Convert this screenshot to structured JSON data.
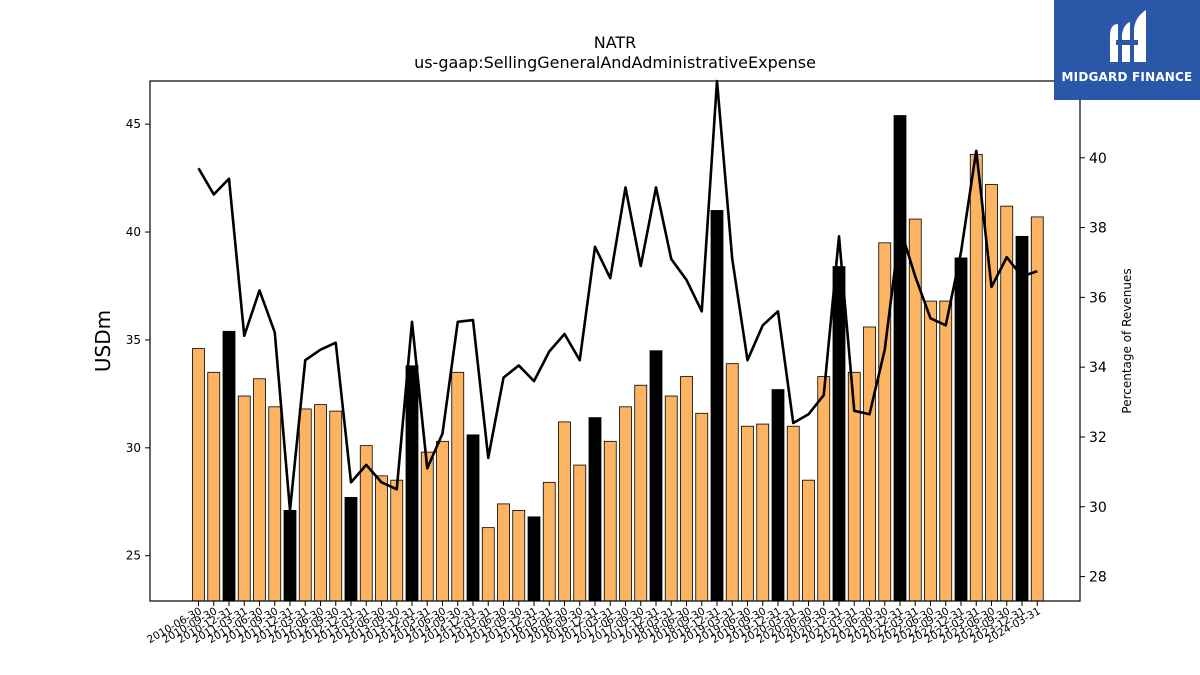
{
  "brand": {
    "name": "MIDGARD FINANCE",
    "bg_color": "#2a57a8"
  },
  "chart_data": {
    "type": "bar",
    "title": "NATR",
    "subtitle": "us-gaap:SellingGeneralAndAdministrativeExpense",
    "ylabel": "USDm",
    "y2label": "Percentage of Revenues",
    "ylim": [
      22.9,
      47.0
    ],
    "y2lim": [
      27.3,
      42.2
    ],
    "yticks": [
      25,
      30,
      35,
      40,
      45
    ],
    "y2ticks": [
      28,
      30,
      32,
      34,
      36,
      38,
      40
    ],
    "colors": {
      "quarter_bar": "#fdb462",
      "annual_bar": "#000000",
      "line": "#000000"
    },
    "xtick_labels": [
      "2010-06-30",
      "2010-09-30",
      "2010-12-31",
      "2011-03-31",
      "2011-06-30",
      "2011-09-30",
      "2011-12-31",
      "2012-03-31",
      "2012-06-30",
      "2012-09-30",
      "2012-12-31",
      "2013-03-31",
      "2013-06-30",
      "2013-09-30",
      "2013-12-31",
      "2014-03-31",
      "2014-06-30",
      "2014-09-30",
      "2014-12-31",
      "2015-03-31",
      "2015-06-30",
      "2015-09-30",
      "2015-12-31",
      "2016-03-31",
      "2016-06-30",
      "2016-09-30",
      "2016-12-31",
      "2017-03-31",
      "2017-06-30",
      "2017-09-30",
      "2017-12-31",
      "2018-03-31",
      "2018-06-30",
      "2018-09-30",
      "2018-12-31",
      "2019-03-31",
      "2019-06-30",
      "2019-09-30",
      "2019-12-31",
      "2020-03-31",
      "2020-06-30",
      "2020-09-30",
      "2020-12-31",
      "2021-03-31",
      "2021-06-30",
      "2021-09-30",
      "2021-12-31",
      "2022-03-31",
      "2022-06-30",
      "2022-09-30",
      "2022-12-31",
      "2023-03-31",
      "2023-06-30",
      "2023-09-30",
      "2023-12-31",
      "2024-03-31"
    ],
    "series": [
      {
        "kind": "bar",
        "values": [
          34.6,
          33.5,
          35.4,
          32.4,
          33.2,
          31.9,
          27.1,
          31.8,
          32.0,
          31.7,
          27.7,
          30.1,
          28.7,
          28.5,
          33.8,
          29.8,
          30.3,
          33.5,
          30.6,
          26.3,
          27.4,
          27.1,
          26.8,
          28.4,
          31.2,
          29.2,
          31.4,
          30.3,
          31.9,
          32.9,
          34.5,
          32.4,
          33.3,
          31.6,
          41.0,
          33.9,
          31.0,
          31.1,
          32.7,
          31.0,
          28.5,
          33.3,
          38.4,
          33.5,
          35.6,
          39.5,
          45.4,
          40.6,
          36.8,
          36.8,
          38.8,
          43.6,
          42.2,
          41.2,
          39.8,
          40.7
        ],
        "annual": [
          false,
          false,
          true,
          false,
          false,
          false,
          true,
          false,
          false,
          false,
          true,
          false,
          false,
          false,
          true,
          false,
          false,
          false,
          true,
          false,
          false,
          false,
          true,
          false,
          false,
          false,
          true,
          false,
          false,
          false,
          true,
          false,
          false,
          false,
          true,
          false,
          false,
          false,
          true,
          false,
          false,
          false,
          true,
          false,
          false,
          false,
          true,
          false,
          false,
          false,
          true,
          false,
          false,
          false,
          true,
          false
        ]
      },
      {
        "kind": "line",
        "axis": "right",
        "values": [
          39.7,
          38.95,
          39.4,
          34.9,
          36.2,
          35.0,
          29.9,
          34.2,
          34.5,
          34.7,
          30.7,
          31.2,
          30.7,
          30.5,
          35.3,
          31.1,
          32.1,
          35.3,
          35.35,
          31.4,
          33.7,
          34.05,
          33.6,
          34.45,
          34.95,
          34.2,
          37.45,
          36.55,
          39.15,
          36.9,
          39.15,
          37.1,
          36.5,
          35.6,
          42.2,
          37.1,
          34.2,
          35.2,
          35.6,
          32.4,
          32.65,
          33.2,
          37.75,
          32.75,
          32.65,
          34.5,
          38.0,
          36.6,
          35.4,
          35.2,
          37.3,
          40.2,
          36.3,
          37.15,
          36.6,
          36.75
        ]
      }
    ]
  }
}
